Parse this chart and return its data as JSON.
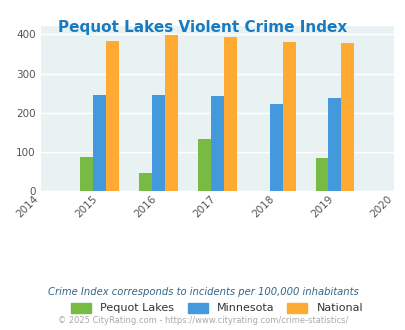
{
  "title": "Pequot Lakes Violent Crime Index",
  "title_color": "#1a7abf",
  "years": [
    2015,
    2016,
    2017,
    2018,
    2019
  ],
  "pequot_lakes": [
    88,
    46,
    133,
    0,
    85
  ],
  "minnesota": [
    245,
    246,
    243,
    222,
    239
  ],
  "national": [
    383,
    398,
    394,
    381,
    379
  ],
  "bar_colors": {
    "pequot_lakes": "#77bb44",
    "minnesota": "#4499dd",
    "national": "#ffaa33"
  },
  "xlim": [
    2014,
    2020
  ],
  "ylim": [
    0,
    420
  ],
  "yticks": [
    0,
    100,
    200,
    300,
    400
  ],
  "xticks": [
    2014,
    2015,
    2016,
    2017,
    2018,
    2019,
    2020
  ],
  "legend_labels": [
    "Pequot Lakes",
    "Minnesota",
    "National"
  ],
  "footnote1": "Crime Index corresponds to incidents per 100,000 inhabitants",
  "footnote2": "© 2025 CityRating.com - https://www.cityrating.com/crime-statistics/",
  "bg_color": "#e8f2f2",
  "grid_color": "#ffffff",
  "bar_width": 0.22
}
